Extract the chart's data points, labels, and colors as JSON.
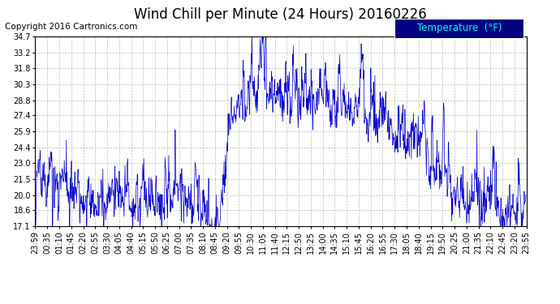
{
  "title": "Wind Chill per Minute (24 Hours) 20160226",
  "copyright_text": "Copyright 2016 Cartronics.com",
  "legend_label": "Temperature  (°F)",
  "line_color": "#0000cc",
  "background_color": "#ffffff",
  "plot_bg_color": "#ffffff",
  "grid_color": "#aaaaaa",
  "legend_bg_color": "#000080",
  "legend_text_color": "#00ffff",
  "ylim_min": 17.1,
  "ylim_max": 34.7,
  "yticks": [
    17.1,
    18.6,
    20.0,
    21.5,
    23.0,
    24.4,
    25.9,
    27.4,
    28.8,
    30.3,
    31.8,
    33.2,
    34.7
  ],
  "x_tick_labels": [
    "23:59",
    "00:35",
    "01:10",
    "01:45",
    "02:20",
    "02:55",
    "03:30",
    "04:05",
    "04:40",
    "05:15",
    "05:50",
    "06:25",
    "07:00",
    "07:35",
    "08:10",
    "08:45",
    "09:20",
    "09:55",
    "10:30",
    "11:05",
    "11:40",
    "12:15",
    "12:50",
    "13:25",
    "14:00",
    "14:35",
    "15:10",
    "15:45",
    "16:20",
    "16:55",
    "17:30",
    "18:05",
    "18:40",
    "19:15",
    "19:50",
    "20:25",
    "21:00",
    "21:35",
    "22:10",
    "22:45",
    "23:20",
    "23:55"
  ],
  "title_fontsize": 12,
  "copyright_fontsize": 7.5,
  "tick_fontsize": 7,
  "legend_fontsize": 8.5
}
